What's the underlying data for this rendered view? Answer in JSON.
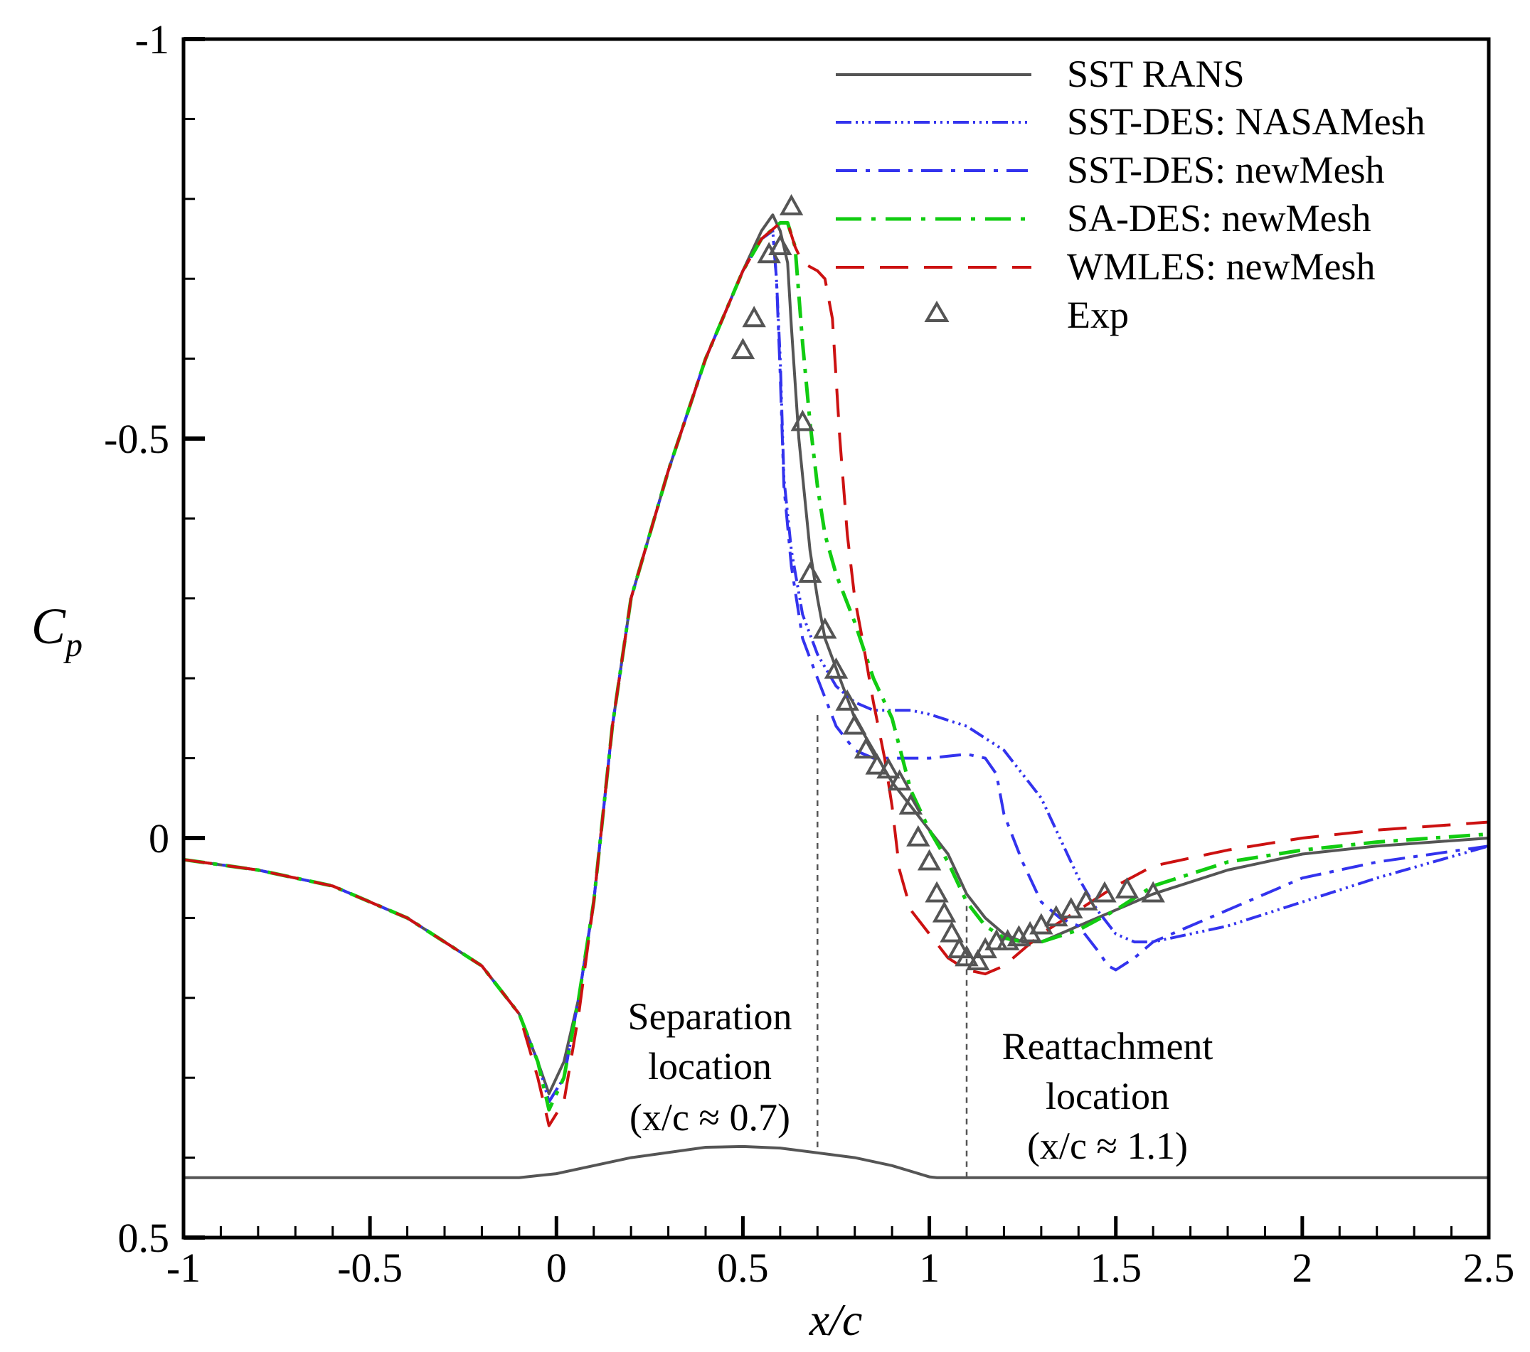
{
  "chart_data": {
    "type": "line",
    "xlabel": "x/c",
    "ylabel": "C",
    "ylabel_subscript": "p",
    "xlim": [
      -1,
      2.5
    ],
    "ylim": [
      0.5,
      -1
    ],
    "y_inverted": true,
    "grid": false,
    "legend_position": "top-right",
    "x_ticks": [
      -1,
      -0.5,
      0,
      0.5,
      1,
      1.5,
      2,
      2.5
    ],
    "x_tick_labels": [
      "-1",
      "-0.5",
      "0",
      "0.5",
      "1",
      "1.5",
      "2",
      "2.5"
    ],
    "y_ticks": [
      -1,
      -0.5,
      0,
      0.5
    ],
    "y_tick_labels": [
      "-1",
      "-0.5",
      "0",
      "0.5"
    ],
    "colors": {
      "sst_rans": "#555555",
      "sst_des_nasa": "#3333ee",
      "sst_des_new": "#3333ee",
      "sa_des": "#11cc11",
      "wmles": "#cc1111",
      "exp": "#555555"
    },
    "series": [
      {
        "name": "SST RANS",
        "key": "sst_rans",
        "style": "solid",
        "x": [
          -1,
          -0.8,
          -0.6,
          -0.4,
          -0.2,
          -0.1,
          -0.05,
          -0.02,
          0.02,
          0.06,
          0.1,
          0.15,
          0.2,
          0.3,
          0.4,
          0.5,
          0.55,
          0.58,
          0.6,
          0.61,
          0.62,
          0.63,
          0.65,
          0.68,
          0.7,
          0.72,
          0.76,
          0.8,
          0.85,
          0.9,
          0.95,
          1.0,
          1.05,
          1.1,
          1.15,
          1.2,
          1.25,
          1.3,
          1.35,
          1.4,
          1.5,
          1.6,
          1.8,
          2.0,
          2.2,
          2.5
        ],
        "y": [
          0.027,
          0.04,
          0.06,
          0.1,
          0.16,
          0.22,
          0.28,
          0.32,
          0.28,
          0.2,
          0.08,
          -0.14,
          -0.3,
          -0.46,
          -0.6,
          -0.71,
          -0.76,
          -0.78,
          -0.76,
          -0.74,
          -0.72,
          -0.64,
          -0.5,
          -0.36,
          -0.3,
          -0.25,
          -0.2,
          -0.15,
          -0.11,
          -0.07,
          -0.04,
          -0.01,
          0.02,
          0.07,
          0.1,
          0.12,
          0.13,
          0.13,
          0.12,
          0.11,
          0.09,
          0.07,
          0.04,
          0.02,
          0.01,
          0.0
        ]
      },
      {
        "name": "SST-DES: NASAMesh",
        "key": "sst_des_nasa",
        "style": "dash-dot-dot",
        "x": [
          -1,
          -0.8,
          -0.6,
          -0.4,
          -0.2,
          -0.1,
          -0.05,
          -0.02,
          0.02,
          0.06,
          0.1,
          0.15,
          0.2,
          0.3,
          0.4,
          0.5,
          0.55,
          0.58,
          0.59,
          0.6,
          0.61,
          0.63,
          0.66,
          0.7,
          0.75,
          0.8,
          0.85,
          0.9,
          0.95,
          1.0,
          1.1,
          1.2,
          1.3,
          1.35,
          1.4,
          1.45,
          1.5,
          1.55,
          1.6,
          1.7,
          1.8,
          2.0,
          2.2,
          2.5
        ],
        "y": [
          0.027,
          0.04,
          0.06,
          0.1,
          0.16,
          0.22,
          0.28,
          0.33,
          0.3,
          0.2,
          0.08,
          -0.14,
          -0.3,
          -0.46,
          -0.6,
          -0.71,
          -0.75,
          -0.76,
          -0.7,
          -0.6,
          -0.45,
          -0.36,
          -0.28,
          -0.23,
          -0.19,
          -0.17,
          -0.16,
          -0.16,
          -0.16,
          -0.155,
          -0.14,
          -0.11,
          -0.05,
          0.0,
          0.05,
          0.09,
          0.12,
          0.13,
          0.13,
          0.12,
          0.11,
          0.08,
          0.05,
          0.01
        ]
      },
      {
        "name": "SST-DES: newMesh",
        "key": "sst_des_new",
        "style": "dash-dot",
        "x": [
          -1,
          -0.8,
          -0.6,
          -0.4,
          -0.2,
          -0.1,
          -0.05,
          -0.02,
          0.02,
          0.06,
          0.1,
          0.15,
          0.2,
          0.3,
          0.4,
          0.5,
          0.55,
          0.58,
          0.59,
          0.6,
          0.61,
          0.63,
          0.66,
          0.7,
          0.75,
          0.8,
          0.85,
          0.9,
          1.0,
          1.1,
          1.15,
          1.18,
          1.2,
          1.25,
          1.3,
          1.35,
          1.4,
          1.45,
          1.48,
          1.5,
          1.55,
          1.6,
          1.8,
          2.0,
          2.2,
          2.5
        ],
        "y": [
          0.027,
          0.04,
          0.06,
          0.1,
          0.16,
          0.22,
          0.28,
          0.33,
          0.3,
          0.2,
          0.08,
          -0.14,
          -0.3,
          -0.46,
          -0.6,
          -0.71,
          -0.75,
          -0.76,
          -0.7,
          -0.58,
          -0.44,
          -0.34,
          -0.25,
          -0.2,
          -0.14,
          -0.11,
          -0.1,
          -0.1,
          -0.1,
          -0.105,
          -0.1,
          -0.08,
          -0.03,
          0.03,
          0.08,
          0.1,
          0.11,
          0.14,
          0.16,
          0.165,
          0.15,
          0.13,
          0.09,
          0.05,
          0.03,
          0.01
        ]
      },
      {
        "name": "SA-DES: newMesh",
        "key": "sa_des",
        "style": "dash-dot",
        "x": [
          -1,
          -0.8,
          -0.6,
          -0.4,
          -0.2,
          -0.1,
          -0.05,
          -0.02,
          0.02,
          0.06,
          0.1,
          0.15,
          0.2,
          0.3,
          0.4,
          0.5,
          0.55,
          0.6,
          0.62,
          0.64,
          0.66,
          0.68,
          0.7,
          0.72,
          0.75,
          0.8,
          0.85,
          0.9,
          0.95,
          1.0,
          1.05,
          1.1,
          1.15,
          1.2,
          1.25,
          1.3,
          1.4,
          1.5,
          1.6,
          1.8,
          2.0,
          2.2,
          2.5
        ],
        "y": [
          0.027,
          0.04,
          0.06,
          0.1,
          0.16,
          0.22,
          0.28,
          0.34,
          0.3,
          0.2,
          0.08,
          -0.14,
          -0.3,
          -0.46,
          -0.6,
          -0.71,
          -0.75,
          -0.77,
          -0.77,
          -0.74,
          -0.62,
          -0.52,
          -0.44,
          -0.38,
          -0.33,
          -0.27,
          -0.2,
          -0.15,
          -0.06,
          -0.01,
          0.03,
          0.08,
          0.11,
          0.125,
          0.13,
          0.13,
          0.115,
          0.09,
          0.06,
          0.03,
          0.015,
          0.005,
          -0.005
        ]
      },
      {
        "name": "WMLES: newMesh",
        "key": "wmles",
        "style": "dashed",
        "x": [
          -1,
          -0.8,
          -0.6,
          -0.4,
          -0.2,
          -0.1,
          -0.05,
          -0.02,
          0.02,
          0.06,
          0.1,
          0.15,
          0.2,
          0.3,
          0.4,
          0.5,
          0.55,
          0.6,
          0.62,
          0.64,
          0.66,
          0.7,
          0.72,
          0.74,
          0.76,
          0.78,
          0.8,
          0.82,
          0.85,
          0.88,
          0.9,
          0.92,
          0.95,
          1.0,
          1.05,
          1.1,
          1.15,
          1.2,
          1.25,
          1.3,
          1.4,
          1.5,
          1.6,
          1.8,
          2.0,
          2.2,
          2.5
        ],
        "y": [
          0.027,
          0.04,
          0.06,
          0.1,
          0.16,
          0.22,
          0.3,
          0.36,
          0.33,
          0.22,
          0.08,
          -0.14,
          -0.3,
          -0.46,
          -0.6,
          -0.71,
          -0.75,
          -0.77,
          -0.77,
          -0.74,
          -0.72,
          -0.71,
          -0.7,
          -0.65,
          -0.5,
          -0.38,
          -0.3,
          -0.25,
          -0.17,
          -0.1,
          -0.04,
          0.04,
          0.09,
          0.12,
          0.15,
          0.165,
          0.17,
          0.16,
          0.14,
          0.12,
          0.09,
          0.06,
          0.035,
          0.015,
          0.0,
          -0.01,
          -0.02
        ]
      }
    ],
    "exp": {
      "name": "Exp",
      "x": [
        0.5,
        0.53,
        0.57,
        0.6,
        0.63,
        0.66,
        0.68,
        0.72,
        0.75,
        0.78,
        0.8,
        0.83,
        0.86,
        0.89,
        0.92,
        0.95,
        0.97,
        1.0,
        1.02,
        1.04,
        1.06,
        1.08,
        1.1,
        1.13,
        1.15,
        1.18,
        1.21,
        1.24,
        1.27,
        1.3,
        1.34,
        1.38,
        1.42,
        1.47,
        1.53,
        1.6
      ],
      "y": [
        -0.61,
        -0.65,
        -0.73,
        -0.74,
        -0.79,
        -0.52,
        -0.33,
        -0.26,
        -0.21,
        -0.17,
        -0.14,
        -0.11,
        -0.09,
        -0.085,
        -0.07,
        -0.04,
        0.0,
        0.03,
        0.07,
        0.095,
        0.12,
        0.14,
        0.15,
        0.155,
        0.14,
        0.13,
        0.13,
        0.125,
        0.12,
        0.11,
        0.1,
        0.09,
        0.08,
        0.07,
        0.065,
        0.07
      ]
    },
    "hump_profile": {
      "x": [
        -1,
        -0.1,
        0.0,
        0.2,
        0.4,
        0.5,
        0.6,
        0.8,
        0.9,
        1.0,
        1.02,
        2.5
      ],
      "y": [
        0.425,
        0.425,
        0.42,
        0.4,
        0.387,
        0.386,
        0.388,
        0.4,
        0.41,
        0.424,
        0.425,
        0.425
      ]
    },
    "markers": [
      {
        "key": "separation",
        "x": 0.7,
        "y_from": 0.387,
        "y_to": -0.16
      },
      {
        "key": "reattachment",
        "x": 1.1,
        "y_from": 0.425,
        "y_to": 0.085
      }
    ],
    "annotations": {
      "separation": [
        "Separation",
        "location",
        "(x/c ≈ 0.7)"
      ],
      "reattachment": [
        "Reattachment",
        "location",
        "(x/c ≈ 1.1)"
      ]
    }
  }
}
